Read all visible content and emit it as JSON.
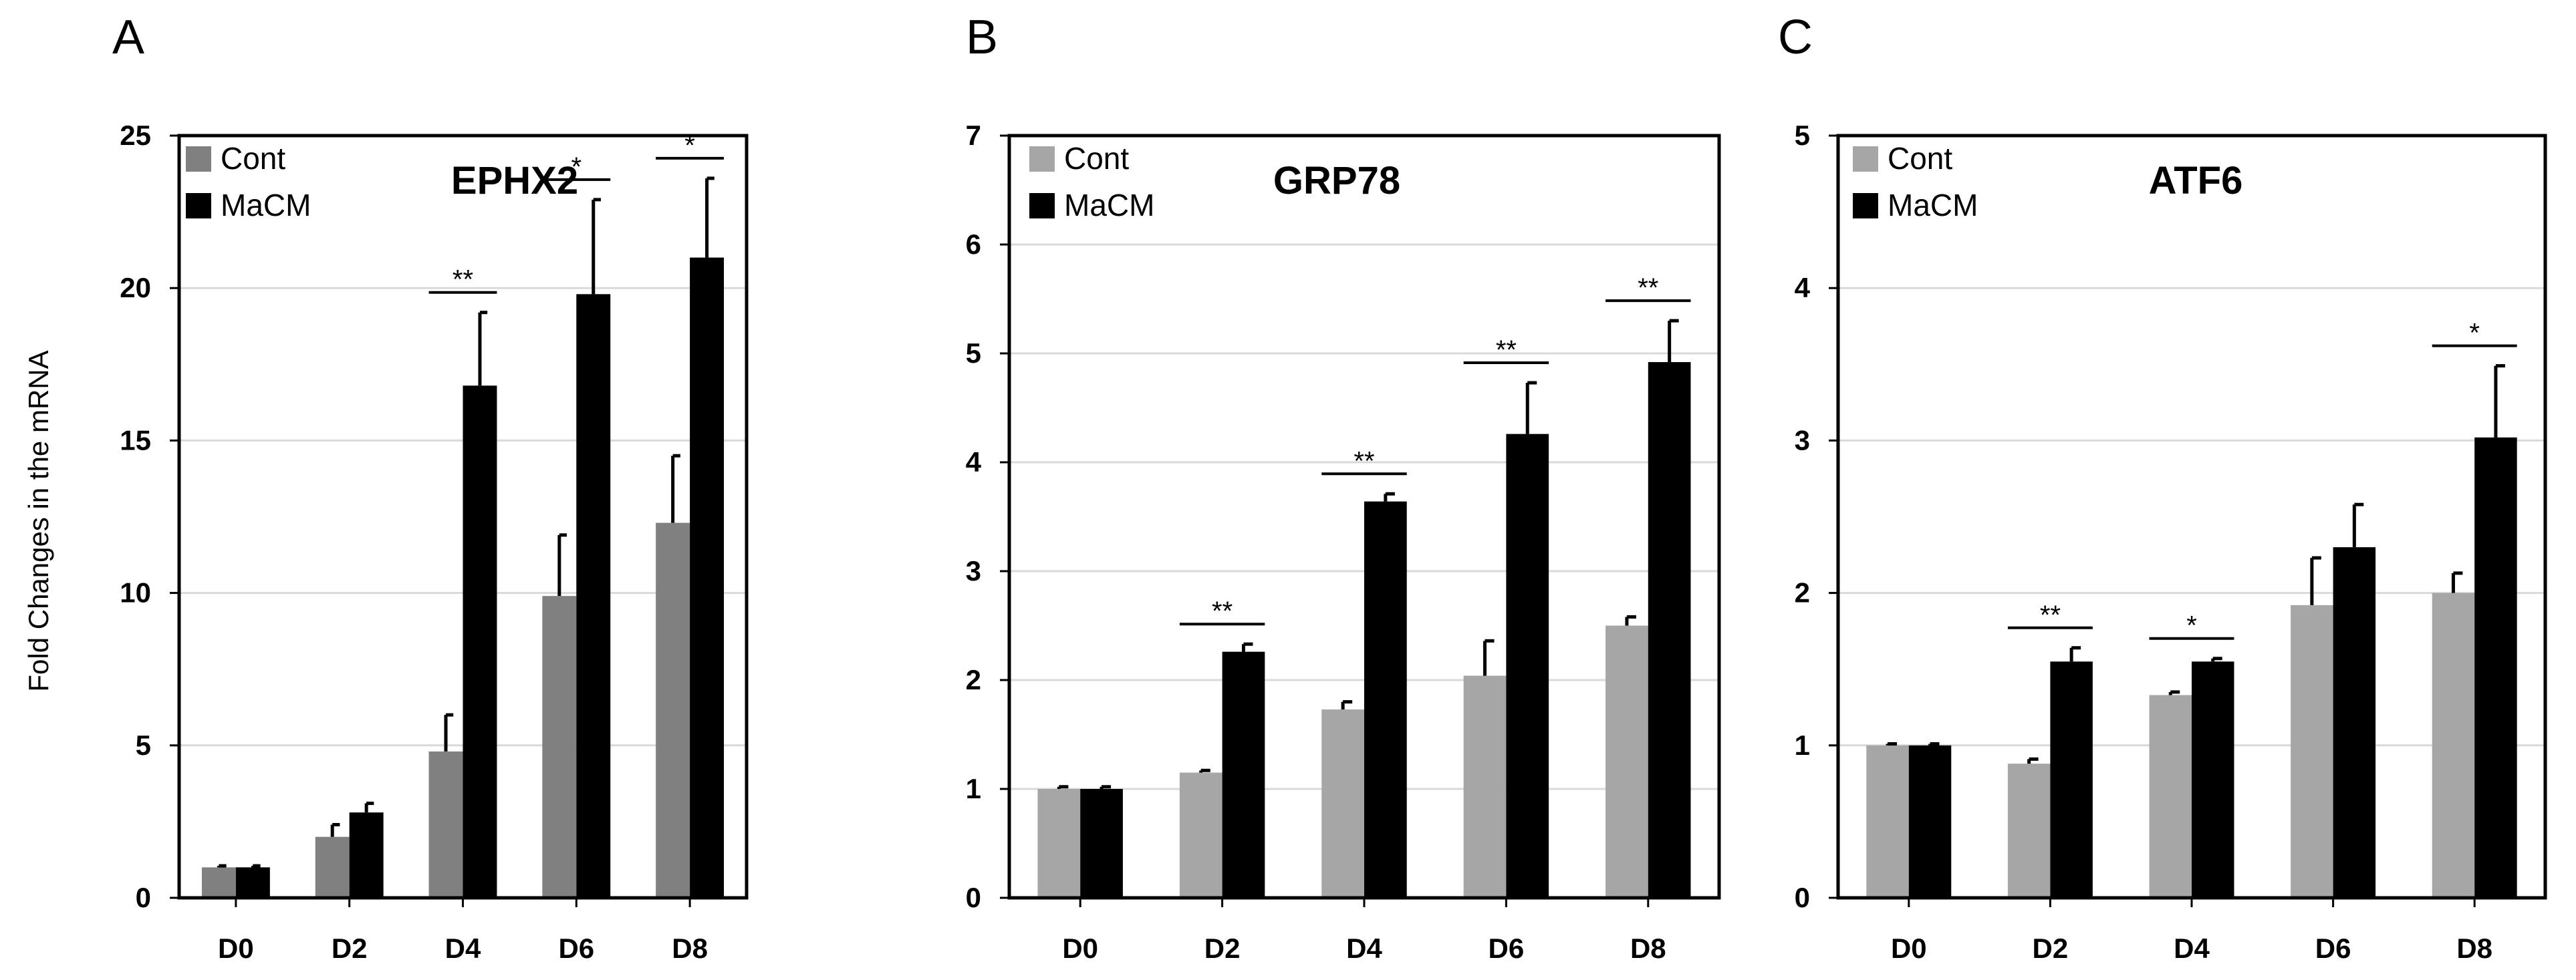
{
  "figure": {
    "ylabel": "Fold Changes in the mRNA"
  },
  "chart_data": [
    {
      "panel": "A",
      "type": "bar",
      "title": "EPHX2",
      "categories": [
        "D0",
        "D2",
        "D4",
        "D6",
        "D8"
      ],
      "ylim": [
        0,
        25
      ],
      "yticks": [
        0,
        5,
        10,
        15,
        20,
        25
      ],
      "legend_position": "top-left",
      "grid": true,
      "series": [
        {
          "name": "Cont",
          "color": "#808080",
          "values": [
            1.0,
            2.0,
            4.8,
            9.9,
            12.3
          ],
          "errors": [
            0.05,
            0.4,
            1.2,
            2.0,
            2.2
          ]
        },
        {
          "name": "MaCM",
          "color": "#000000",
          "values": [
            1.0,
            2.8,
            16.8,
            19.8,
            21.0
          ],
          "errors": [
            0.05,
            0.3,
            2.4,
            3.1,
            2.6
          ]
        }
      ],
      "significance": [
        {
          "category": "D4",
          "label": "**"
        },
        {
          "category": "D6",
          "label": "*"
        },
        {
          "category": "D8",
          "label": "*"
        }
      ]
    },
    {
      "panel": "B",
      "type": "bar",
      "title": "GRP78",
      "categories": [
        "D0",
        "D2",
        "D4",
        "D6",
        "D8"
      ],
      "ylim": [
        0,
        7
      ],
      "yticks": [
        0,
        1,
        2,
        3,
        4,
        5,
        6,
        7
      ],
      "legend_position": "top-left",
      "grid": true,
      "series": [
        {
          "name": "Cont",
          "color": "#a6a6a6",
          "values": [
            1.0,
            1.15,
            1.73,
            2.04,
            2.5
          ],
          "errors": [
            0.02,
            0.02,
            0.07,
            0.32,
            0.08
          ]
        },
        {
          "name": "MaCM",
          "color": "#000000",
          "values": [
            1.0,
            2.26,
            3.64,
            4.26,
            4.92
          ],
          "errors": [
            0.02,
            0.07,
            0.07,
            0.47,
            0.38
          ]
        }
      ],
      "significance": [
        {
          "category": "D2",
          "label": "**"
        },
        {
          "category": "D4",
          "label": "**"
        },
        {
          "category": "D6",
          "label": "**"
        },
        {
          "category": "D8",
          "label": "**"
        }
      ]
    },
    {
      "panel": "C",
      "type": "bar",
      "title": "ATF6",
      "categories": [
        "D0",
        "D2",
        "D4",
        "D6",
        "D8"
      ],
      "ylim": [
        0,
        5
      ],
      "yticks": [
        0,
        1,
        2,
        3,
        4,
        5
      ],
      "legend_position": "top-left",
      "grid": true,
      "series": [
        {
          "name": "Cont",
          "color": "#a6a6a6",
          "values": [
            1.0,
            0.88,
            1.33,
            1.92,
            2.0
          ],
          "errors": [
            0.01,
            0.03,
            0.02,
            0.31,
            0.13
          ]
        },
        {
          "name": "MaCM",
          "color": "#000000",
          "values": [
            1.0,
            1.55,
            1.55,
            2.3,
            3.02
          ],
          "errors": [
            0.01,
            0.09,
            0.02,
            0.28,
            0.47
          ]
        }
      ],
      "significance": [
        {
          "category": "D2",
          "label": "**"
        },
        {
          "category": "D4",
          "label": "*"
        },
        {
          "category": "D8",
          "label": "*"
        }
      ]
    }
  ]
}
